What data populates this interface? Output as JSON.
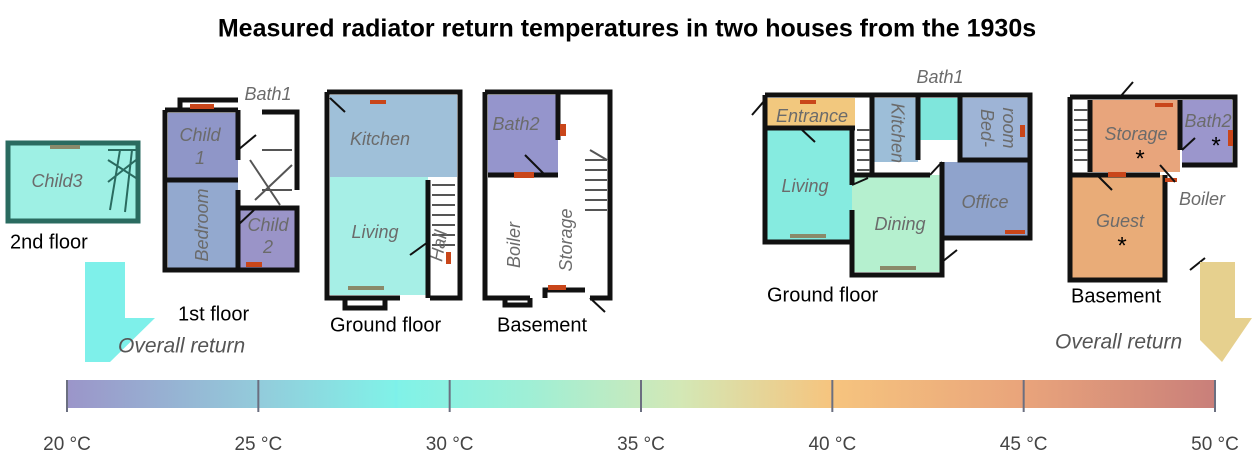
{
  "title": "Measured radiator return temperatures in two houses from the 1930s",
  "houses": [
    {
      "floors": [
        {
          "label": "2nd floor",
          "rooms": [
            {
              "lines": [
                "Child3"
              ]
            }
          ]
        },
        {
          "label": "1st floor",
          "rooms": [
            {
              "lines": [
                "Bath1"
              ]
            },
            {
              "lines": [
                "Child",
                "1"
              ]
            },
            {
              "lines": [
                "Bedroom"
              ]
            },
            {
              "lines": [
                "Child",
                "2"
              ]
            }
          ]
        },
        {
          "label": "Ground floor",
          "rooms": [
            {
              "lines": [
                "Kitchen"
              ]
            },
            {
              "lines": [
                "Living"
              ]
            },
            {
              "lines": [
                "Hall"
              ]
            }
          ]
        },
        {
          "label": "Basement",
          "rooms": [
            {
              "lines": [
                "Bath2"
              ]
            },
            {
              "lines": [
                "Boiler"
              ]
            },
            {
              "lines": [
                "Storage"
              ]
            }
          ]
        }
      ],
      "overall_return": {
        "label": "Overall return",
        "value": 28.6,
        "color": "#7ef0ea"
      }
    },
    {
      "floors": [
        {
          "label": "Ground floor",
          "rooms": [
            {
              "lines": [
                "Bath1"
              ]
            },
            {
              "lines": [
                "Entrance"
              ]
            },
            {
              "lines": [
                "Living"
              ]
            },
            {
              "lines": [
                "Kitchen"
              ]
            },
            {
              "lines": [
                "Bed-",
                "room"
              ]
            },
            {
              "lines": [
                "Dining"
              ]
            },
            {
              "lines": [
                "Office"
              ]
            }
          ]
        },
        {
          "label": "Basement",
          "rooms": [
            {
              "lines": [
                "Storage"
              ],
              "note": "*"
            },
            {
              "lines": [
                "Bath2"
              ],
              "note": "*"
            },
            {
              "lines": [
                "Guest"
              ],
              "note": "*"
            },
            {
              "lines": [
                "Boiler"
              ]
            }
          ]
        }
      ],
      "overall_return": {
        "label": "Overall return",
        "color": "#e6d08e"
      }
    }
  ],
  "colorbar": {
    "lim": [
      20,
      50
    ],
    "ticks": [
      {
        "value": 20,
        "label": "20 °C"
      },
      {
        "value": 25,
        "label": "25 °C"
      },
      {
        "value": 30,
        "label": "30 °C"
      },
      {
        "value": 35,
        "label": "35 °C"
      },
      {
        "value": 40,
        "label": "40 °C"
      },
      {
        "value": 45,
        "label": "45 °C"
      },
      {
        "value": 50,
        "label": "50 °C"
      }
    ],
    "stops": [
      {
        "value": 20,
        "color": "#9b95c9"
      },
      {
        "value": 25,
        "color": "#93cbdb"
      },
      {
        "value": 28.6,
        "color": "#80f2e8"
      },
      {
        "value": 32,
        "color": "#9eefd6"
      },
      {
        "value": 36,
        "color": "#d3e8b6"
      },
      {
        "value": 40,
        "color": "#f6c47e"
      },
      {
        "value": 45,
        "color": "#e9a47b"
      },
      {
        "value": 50,
        "color": "#c97f7a"
      }
    ]
  }
}
